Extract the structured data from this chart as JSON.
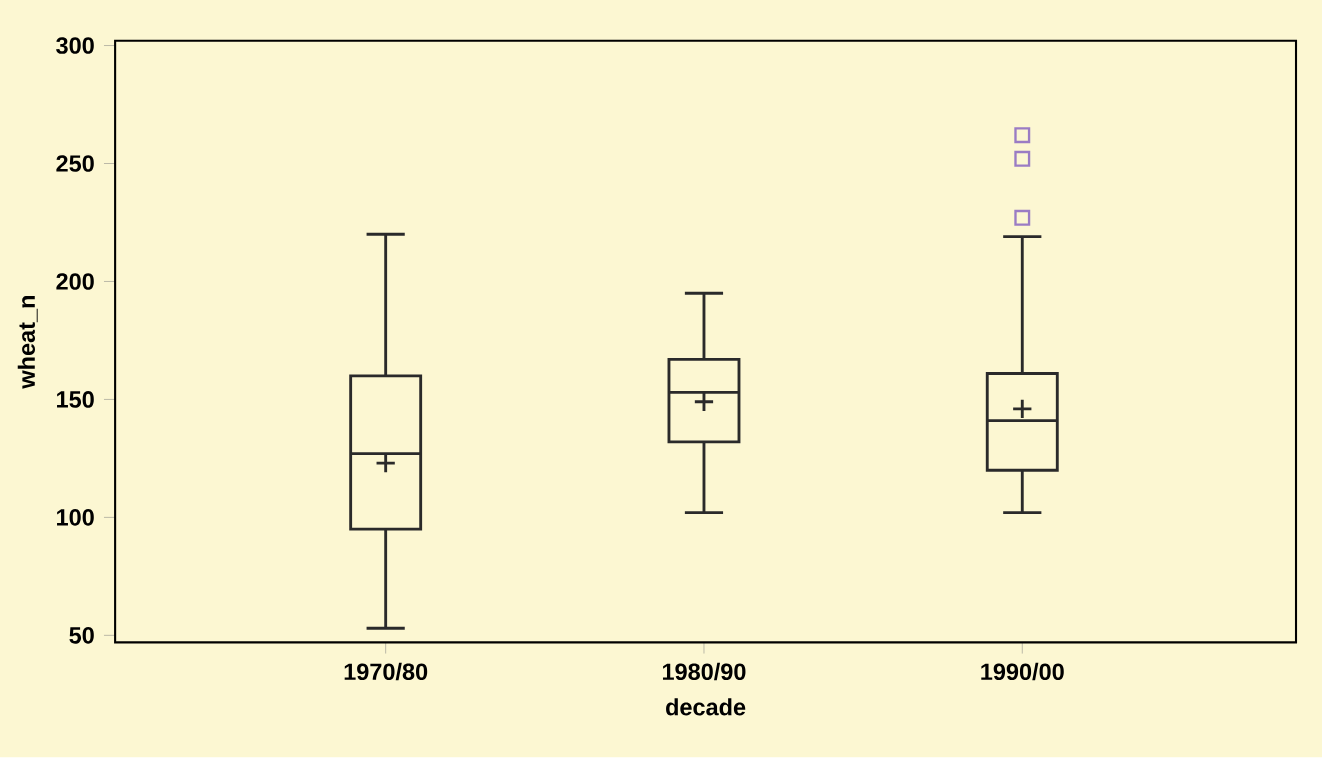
{
  "chart_data": {
    "type": "box",
    "xlabel": "decade",
    "ylabel": "wheat_n",
    "categories": [
      "1970/80",
      "1980/90",
      "1990/00"
    ],
    "boxes": [
      {
        "low": 53,
        "q1": 95,
        "median": 127,
        "q3": 160,
        "high": 220,
        "mean": 123
      },
      {
        "low": 102,
        "q1": 132,
        "median": 153,
        "q3": 167,
        "high": 195,
        "mean": 149
      },
      {
        "low": 102,
        "q1": 120,
        "median": 141,
        "q3": 161,
        "high": 219,
        "mean": 146,
        "outliers": [
          227,
          252,
          262
        ]
      }
    ],
    "color": "#2a2a2a",
    "ylim": [
      47,
      302
    ],
    "yticks": [
      50,
      100,
      150,
      200,
      250,
      300
    ]
  }
}
